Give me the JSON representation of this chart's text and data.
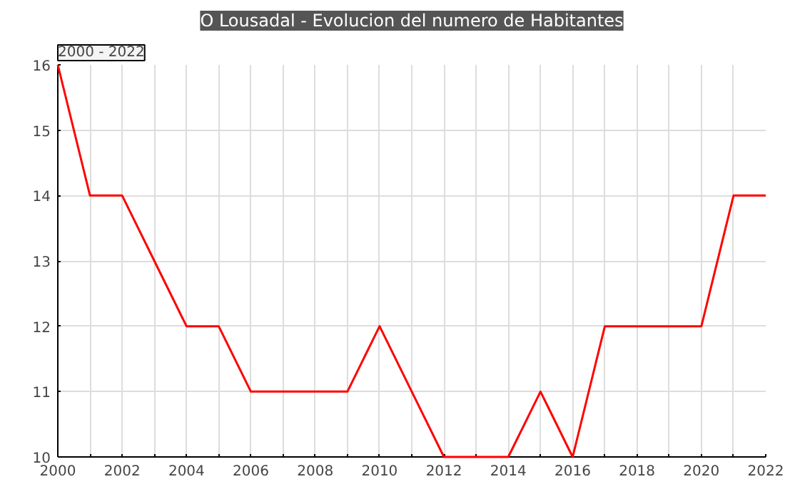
{
  "chart_data": {
    "type": "line",
    "title": "O Lousadal - Evolucion del numero de Habitantes",
    "annotations": [
      "2000 - 2022"
    ],
    "x": [
      2000,
      2001,
      2002,
      2003,
      2004,
      2005,
      2006,
      2007,
      2008,
      2009,
      2010,
      2011,
      2012,
      2013,
      2014,
      2015,
      2016,
      2017,
      2018,
      2019,
      2020,
      2021,
      2022
    ],
    "series": [
      {
        "color": "#ff0000",
        "values": [
          16,
          14,
          14,
          13,
          12,
          12,
          11,
          11,
          11,
          11,
          12,
          11,
          10,
          10,
          10,
          11,
          10,
          12,
          12,
          12,
          12,
          14,
          14
        ]
      }
    ],
    "xlim": [
      2000,
      2022
    ],
    "xticks": [
      2000,
      {
        "value": 2001,
        "label": null
      },
      2002,
      {
        "value": 2003,
        "label": null
      },
      2004,
      {
        "value": 2005,
        "label": null
      },
      2006,
      {
        "value": 2007,
        "label": null
      },
      2008,
      {
        "value": 2009,
        "label": null
      },
      2010,
      {
        "value": 2011,
        "label": null
      },
      2012,
      {
        "value": 2013,
        "label": null
      },
      2014,
      {
        "value": 2015,
        "label": null
      },
      2016,
      {
        "value": 2017,
        "label": null
      },
      2018,
      {
        "value": 2019,
        "label": null
      },
      2020,
      {
        "value": 2021,
        "label": null
      },
      2022
    ],
    "ylim": [
      10,
      16
    ],
    "yticks": [
      10,
      11,
      12,
      13,
      14,
      15,
      16
    ],
    "grid": true,
    "marker": "none",
    "line_style": "solid"
  }
}
